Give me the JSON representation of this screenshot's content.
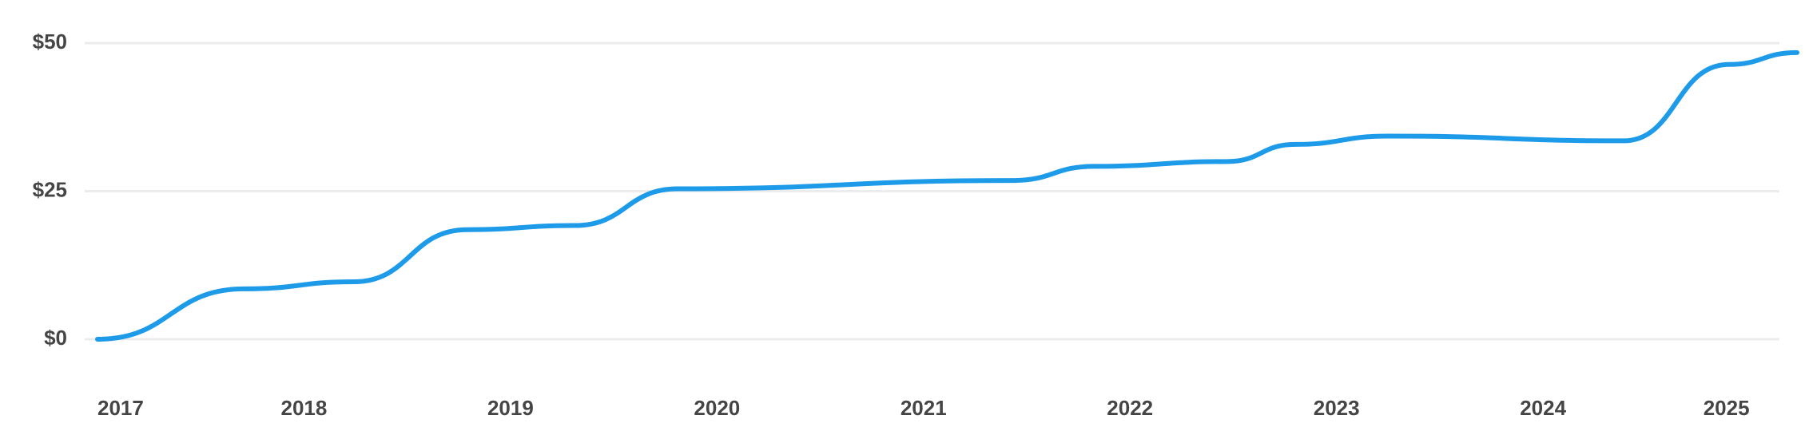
{
  "chart_data": {
    "type": "line",
    "x": [
      2017.0,
      2017.71,
      2018.24,
      2018.79,
      2019.31,
      2019.81,
      2021.43,
      2021.83,
      2022.47,
      2022.8,
      2023.25,
      2024.39,
      2024.9,
      2025.23
    ],
    "series": [
      {
        "color": "#1e9be8",
        "values": [
          0,
          8.5,
          9.7,
          18.5,
          19.2,
          25.4,
          26.8,
          29.2,
          30.0,
          32.9,
          34.3,
          33.5,
          46.4,
          48.4
        ]
      }
    ],
    "xlim": [
      2017,
      2025.23
    ],
    "xticks": [
      2017,
      2018,
      2019,
      2020,
      2021,
      2022,
      2023,
      2024,
      2025
    ],
    "ylim": [
      0,
      50
    ],
    "yticks": [
      {
        "value": 0,
        "label": "$0"
      },
      {
        "value": 25,
        "label": "$25"
      },
      {
        "value": 50,
        "label": "$50"
      }
    ],
    "grid": true
  }
}
